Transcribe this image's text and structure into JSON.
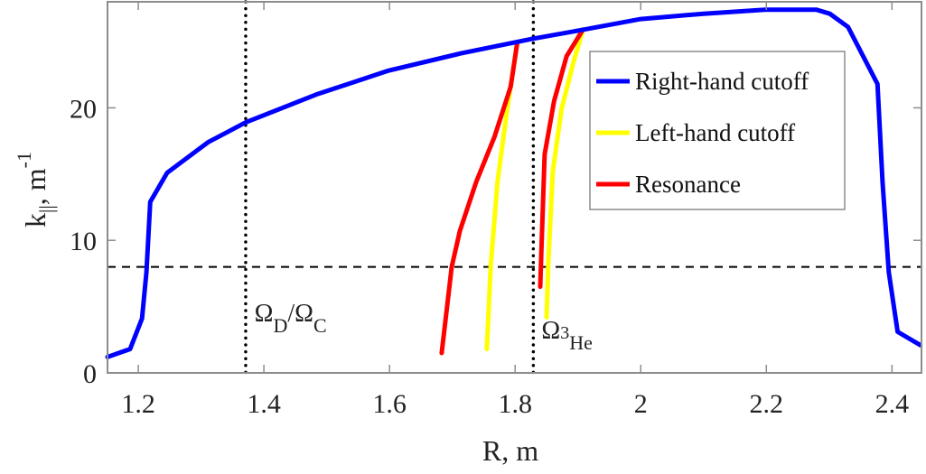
{
  "chart_data": {
    "type": "line",
    "title": "",
    "xlabel": "R, m",
    "ylabel": "k||, m^-1",
    "ylabel_parts": {
      "main": "k",
      "sub": "||",
      "sep": ", m",
      "sup": "-1"
    },
    "xlim": [
      1.151,
      2.447
    ],
    "ylim": [
      0,
      28
    ],
    "xticks": [
      1.2,
      1.4,
      1.6,
      1.8,
      2.0,
      2.2,
      2.4
    ],
    "xtick_labels": [
      "1.2",
      "1.4",
      "1.6",
      "1.8",
      "2",
      "2.2",
      "2.4"
    ],
    "yticks": [
      0,
      10,
      20
    ],
    "ytick_labels": [
      "0",
      "10",
      "20"
    ],
    "grid": false,
    "legend_position": "upper right (inside)",
    "series": [
      {
        "name": "Right-hand cutoff",
        "color": "#0000ff",
        "x": [
          1.151,
          1.187,
          1.206,
          1.213,
          1.219,
          1.246,
          1.311,
          1.371,
          1.483,
          1.598,
          1.713,
          1.827,
          1.909,
          2.0,
          2.1,
          2.198,
          2.28,
          2.301,
          2.33,
          2.377,
          2.385,
          2.395,
          2.409,
          2.445
        ],
        "y": [
          1.2,
          1.8,
          4.1,
          7.6,
          12.9,
          15.1,
          17.4,
          18.9,
          21.0,
          22.8,
          24.1,
          25.2,
          25.9,
          26.7,
          27.1,
          27.4,
          27.4,
          27.1,
          26.1,
          21.8,
          14.4,
          7.6,
          3.1,
          2.1
        ]
      },
      {
        "name": "Left-hand cutoff",
        "color": "#ffff00",
        "segments": [
          {
            "x": [
              1.755,
              1.761,
              1.772,
              1.787,
              1.803
            ],
            "y": [
              1.8,
              8.0,
              14.4,
              19.8,
              24.8
            ]
          },
          {
            "x": [
              1.85,
              1.853,
              1.86,
              1.874,
              1.892,
              1.908
            ],
            "y": [
              4.2,
              8.4,
              15.2,
              19.9,
              23.3,
              25.9
            ]
          }
        ]
      },
      {
        "name": "Resonance",
        "color": "#ff0000",
        "segments": [
          {
            "x": [
              1.683,
              1.699,
              1.712,
              1.738,
              1.767,
              1.793,
              1.803
            ],
            "y": [
              1.5,
              8.0,
              10.7,
              14.4,
              17.8,
              21.6,
              24.8
            ]
          },
          {
            "x": [
              1.84,
              1.842,
              1.847,
              1.862,
              1.882,
              1.908
            ],
            "y": [
              6.5,
              9.5,
              16.5,
              20.5,
              23.9,
              25.9
            ]
          }
        ]
      }
    ],
    "reference_lines": [
      {
        "type": "horizontal",
        "y": 8.0,
        "style": "dashed",
        "color": "#000000"
      },
      {
        "type": "vertical",
        "x": 1.371,
        "style": "dotted",
        "color": "#000000"
      },
      {
        "type": "vertical",
        "x": 1.829,
        "style": "dotted",
        "color": "#000000"
      }
    ],
    "annotations": [
      {
        "text": "ΩD/ΩC",
        "parts": [
          {
            "t": "Ω"
          },
          {
            "t": "D",
            "sub": true
          },
          {
            "t": "/Ω"
          },
          {
            "t": "C",
            "sub": true
          }
        ],
        "x": 1.385,
        "y": 3.9
      },
      {
        "text": "Ω3He",
        "parts": [
          {
            "t": "Ω"
          },
          {
            "t": "3",
            "sup": false,
            "small": true
          },
          {
            "t": "He",
            "sub": true
          }
        ],
        "x": 1.842,
        "y": 2.6
      }
    ],
    "legend": [
      {
        "label": "Right-hand cutoff",
        "color": "#0000ff"
      },
      {
        "label": "Left-hand cutoff",
        "color": "#ffff00"
      },
      {
        "label": "Resonance",
        "color": "#ff0000"
      }
    ]
  }
}
